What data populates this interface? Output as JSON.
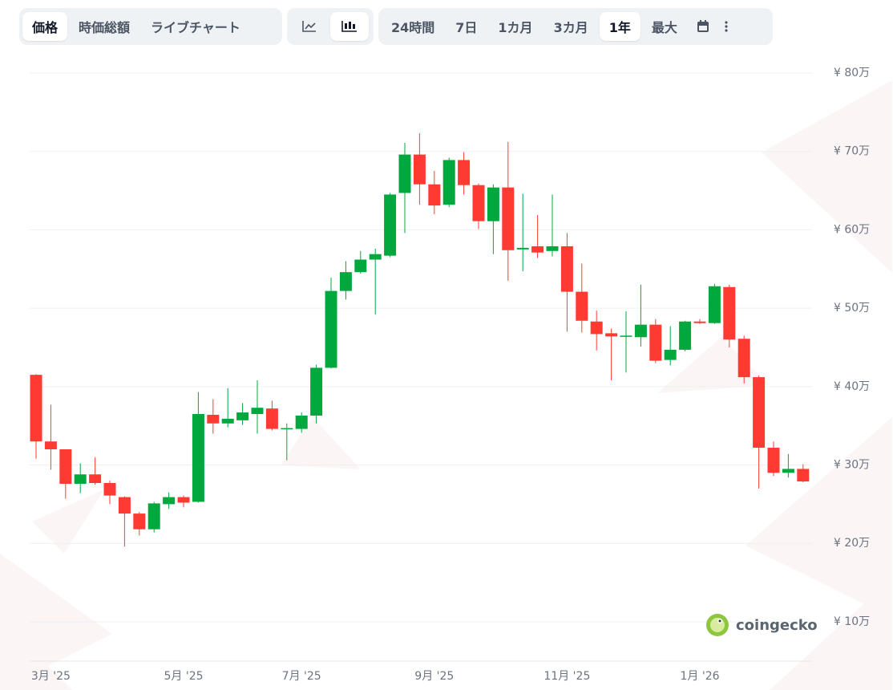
{
  "toolbar": {
    "view_tabs": [
      "価格",
      "時価総額",
      "ライブチャート"
    ],
    "range_tabs": [
      "24時間",
      "7日",
      "1カ月",
      "3カ月",
      "1年",
      "最大"
    ]
  },
  "logo": "coingecko",
  "chart_data": {
    "type": "candlestick",
    "up_color": "#00a83e",
    "down_color": "#ff3a33",
    "grid": true,
    "categories": [
      null,
      "3月 '25",
      null,
      null,
      null,
      null,
      null,
      null,
      null,
      null,
      "5月 '25",
      null,
      null,
      null,
      null,
      null,
      null,
      null,
      "7月 '25",
      null,
      null,
      null,
      null,
      null,
      null,
      null,
      null,
      "9月 '25",
      null,
      null,
      null,
      null,
      null,
      null,
      null,
      null,
      "11月 '25",
      null,
      null,
      null,
      null,
      null,
      null,
      null,
      null,
      "1月 '26",
      null,
      null,
      null,
      null,
      null,
      null,
      null
    ],
    "open": [
      41.5,
      33,
      32,
      27.6,
      28.8,
      27.7,
      25.9,
      23.8,
      21.8,
      25,
      25.9,
      25.3,
      36.4,
      35.3,
      35.7,
      36.5,
      37.2,
      34.6,
      34.6,
      36.3,
      42.4,
      52.2,
      54.6,
      56.2,
      56.7,
      64.7,
      69.6,
      65.8,
      63.2,
      68.9,
      65.7,
      61.1,
      65.4,
      57.5,
      57.9,
      57.3,
      57.9,
      52.1,
      48.3,
      46.8,
      46.4,
      46.3,
      47.9,
      43.4,
      44.7,
      48.3,
      48.1,
      52.7,
      46.1,
      41.2,
      32.2,
      29,
      29.5
    ],
    "high": [
      41.6,
      37.7,
      32,
      30.2,
      31,
      28,
      26,
      24,
      25.3,
      26.5,
      26.1,
      39.3,
      38.4,
      39.8,
      37.9,
      40.8,
      38.2,
      35.3,
      36.7,
      42.8,
      53.9,
      56,
      57.3,
      57.6,
      64.7,
      71.1,
      72.3,
      67.5,
      69.2,
      69.9,
      65.9,
      65.8,
      71.2,
      64.6,
      61.9,
      64.5,
      59.6,
      55.7,
      49.7,
      47.4,
      49.6,
      53,
      48.6,
      47.7,
      48.4,
      48.6,
      53.1,
      53,
      46.5,
      41.4,
      33,
      31.4,
      30.1
    ],
    "low": [
      30.8,
      29.4,
      25.7,
      26.4,
      27.5,
      25,
      19.6,
      21,
      21.4,
      24.4,
      24.6,
      25.2,
      34,
      34.8,
      35.1,
      34,
      34.4,
      30.6,
      34.1,
      35.3,
      42.3,
      51.1,
      54.4,
      49.2,
      56.5,
      59.6,
      63.2,
      62,
      62.9,
      64.5,
      60.1,
      56.9,
      53.5,
      54.7,
      56.4,
      56.6,
      47,
      46.9,
      44.6,
      40.8,
      41.8,
      45.1,
      43,
      42.7,
      44.5,
      48,
      48,
      45,
      40.4,
      27,
      28.6,
      28.4,
      27.8
    ],
    "close": [
      33,
      32,
      27.6,
      28.8,
      27.7,
      26.1,
      23.8,
      21.8,
      25.1,
      25.9,
      25.2,
      36.5,
      35.3,
      35.9,
      36.7,
      37.3,
      34.6,
      34.7,
      36.3,
      42.4,
      52.2,
      54.6,
      56.2,
      56.9,
      64.5,
      69.6,
      65.8,
      63.1,
      68.9,
      65.7,
      61.1,
      65.4,
      57.4,
      57.7,
      57.1,
      57.9,
      52.1,
      48.4,
      46.7,
      46.4,
      46.5,
      47.9,
      43.3,
      44.7,
      48.3,
      48.1,
      52.8,
      46,
      41.2,
      32.2,
      29,
      29.5,
      27.9
    ],
    "ylim": [
      5,
      83
    ],
    "yticks": [
      {
        "value": 10,
        "label": "¥ 10万"
      },
      {
        "value": 20,
        "label": "¥ 20万"
      },
      {
        "value": 30,
        "label": "¥ 30万"
      },
      {
        "value": 40,
        "label": "¥ 40万"
      },
      {
        "value": 50,
        "label": "¥ 50万"
      },
      {
        "value": 60,
        "label": "¥ 60万"
      },
      {
        "value": 70,
        "label": "¥ 70万"
      },
      {
        "value": 80,
        "label": "¥ 80万"
      }
    ]
  }
}
